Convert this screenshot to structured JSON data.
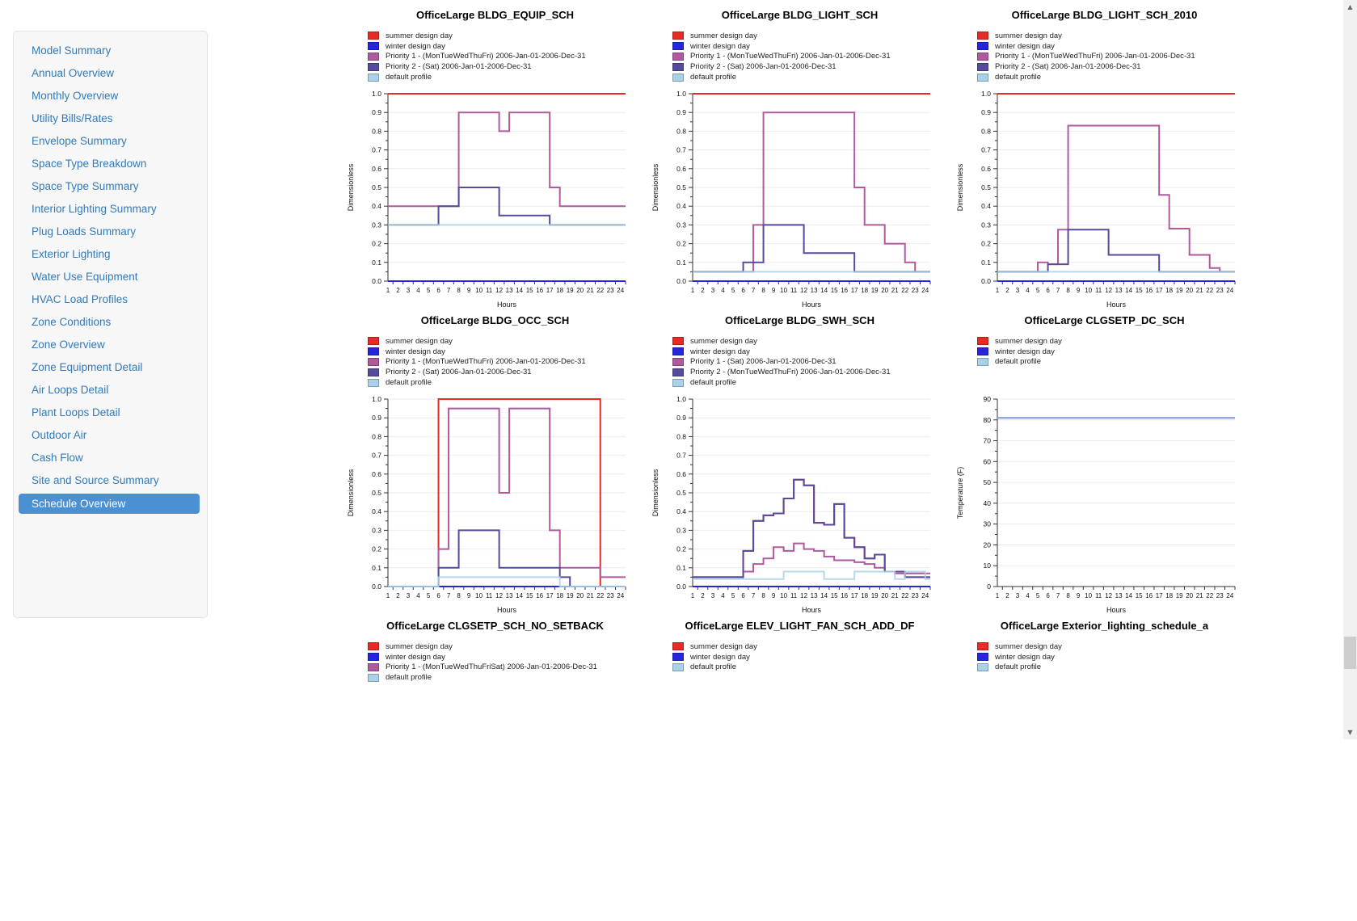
{
  "colors": {
    "summer": "#e62a26",
    "winter": "#2525e0",
    "priority1": "#ae5a9d",
    "priority2": "#534b9b",
    "default_profile": "#a9d2e8",
    "link": "#337ab7",
    "selected_bg": "#4a90d2",
    "selected_text": "#ffffff",
    "grid": "#ebebeb",
    "axis": "#333333"
  },
  "sidebar": {
    "items": [
      {
        "label": "Model Summary",
        "selected": false
      },
      {
        "label": "Annual Overview",
        "selected": false
      },
      {
        "label": "Monthly Overview",
        "selected": false
      },
      {
        "label": "Utility Bills/Rates",
        "selected": false
      },
      {
        "label": "Envelope Summary",
        "selected": false
      },
      {
        "label": "Space Type Breakdown",
        "selected": false
      },
      {
        "label": "Space Type Summary",
        "selected": false
      },
      {
        "label": "Interior Lighting Summary",
        "selected": false
      },
      {
        "label": "Plug Loads Summary",
        "selected": false
      },
      {
        "label": "Exterior Lighting",
        "selected": false
      },
      {
        "label": "Water Use Equipment",
        "selected": false
      },
      {
        "label": "HVAC Load Profiles",
        "selected": false
      },
      {
        "label": "Zone Conditions",
        "selected": false
      },
      {
        "label": "Zone Overview",
        "selected": false
      },
      {
        "label": "Zone Equipment Detail",
        "selected": false
      },
      {
        "label": "Air Loops Detail",
        "selected": false
      },
      {
        "label": "Plant Loops Detail",
        "selected": false
      },
      {
        "label": "Outdoor Air",
        "selected": false
      },
      {
        "label": "Cash Flow",
        "selected": false
      },
      {
        "label": "Site and Source Summary",
        "selected": false
      },
      {
        "label": "Schedule Overview",
        "selected": true
      }
    ]
  },
  "scrollbar": {
    "up_icon": "▲",
    "down_icon": "▼",
    "thumb_top": 788,
    "thumb_height": 40
  },
  "chart_data": [
    {
      "type": "line",
      "title": "OfficeLarge BLDG_EQUIP_SCH",
      "ylabel": "Dimensionless",
      "xlabel": "Hours",
      "ylim": [
        0,
        1.0
      ],
      "ytick_step": 0.1,
      "ydecimals": 1,
      "x_hours": [
        1,
        2,
        3,
        4,
        5,
        6,
        7,
        8,
        9,
        10,
        11,
        12,
        13,
        14,
        15,
        16,
        17,
        18,
        19,
        20,
        21,
        22,
        23,
        24
      ],
      "plot_visible": true,
      "legend": [
        {
          "label": "summer design day",
          "color": "summer"
        },
        {
          "label": "winter design day",
          "color": "winter"
        },
        {
          "label": "Priority 1 - (MonTueWedThuFri) 2006-Jan-01-2006-Dec-31",
          "color": "priority1"
        },
        {
          "label": "Priority 2 - (Sat) 2006-Jan-01-2006-Dec-31",
          "color": "priority2"
        },
        {
          "label": "default profile",
          "color": "default_profile"
        }
      ],
      "series": [
        {
          "label": "summer design day",
          "color": "summer",
          "const": 1.0
        },
        {
          "label": "winter design day",
          "color": "winter",
          "const": 0.0
        },
        {
          "label": "Priority 1 - (MonTueWedThuFri) 2006-Jan-01-2006-Dec-31",
          "color": "priority1",
          "values": [
            0.4,
            0.4,
            0.4,
            0.4,
            0.4,
            0.4,
            0.4,
            0.9,
            0.9,
            0.9,
            0.9,
            0.8,
            0.9,
            0.9,
            0.9,
            0.9,
            0.5,
            0.4,
            0.4,
            0.4,
            0.4,
            0.4,
            0.4,
            0.4
          ]
        },
        {
          "label": "Priority 2 - (Sat) 2006-Jan-01-2006-Dec-31",
          "color": "priority2",
          "values": [
            0.3,
            0.3,
            0.3,
            0.3,
            0.3,
            0.4,
            0.4,
            0.5,
            0.5,
            0.5,
            0.5,
            0.35,
            0.35,
            0.35,
            0.35,
            0.35,
            0.3,
            0.3,
            0.3,
            0.3,
            0.3,
            0.3,
            0.3,
            0.3
          ]
        },
        {
          "label": "default profile",
          "color": "default_profile",
          "const": 0.3
        }
      ]
    },
    {
      "type": "line",
      "title": "OfficeLarge BLDG_LIGHT_SCH",
      "ylabel": "Dimensionless",
      "xlabel": "Hours",
      "ylim": [
        0,
        1.0
      ],
      "ytick_step": 0.1,
      "ydecimals": 1,
      "x_hours": [
        1,
        2,
        3,
        4,
        5,
        6,
        7,
        8,
        9,
        10,
        11,
        12,
        13,
        14,
        15,
        16,
        17,
        18,
        19,
        20,
        21,
        22,
        23,
        24
      ],
      "plot_visible": true,
      "legend": [
        {
          "label": "summer design day",
          "color": "summer"
        },
        {
          "label": "winter design day",
          "color": "winter"
        },
        {
          "label": "Priority 1 - (MonTueWedThuFri) 2006-Jan-01-2006-Dec-31",
          "color": "priority1"
        },
        {
          "label": "Priority 2 - (Sat) 2006-Jan-01-2006-Dec-31",
          "color": "priority2"
        },
        {
          "label": "default profile",
          "color": "default_profile"
        }
      ],
      "series": [
        {
          "label": "summer design day",
          "color": "summer",
          "const": 1.0
        },
        {
          "label": "winter design day",
          "color": "winter",
          "const": 0.0
        },
        {
          "label": "Priority 1 - (MonTueWedThuFri) 2006-Jan-01-2006-Dec-31",
          "color": "priority1",
          "values": [
            0.05,
            0.05,
            0.05,
            0.05,
            0.05,
            0.05,
            0.3,
            0.9,
            0.9,
            0.9,
            0.9,
            0.9,
            0.9,
            0.9,
            0.9,
            0.9,
            0.5,
            0.3,
            0.3,
            0.2,
            0.2,
            0.1,
            0.05,
            0.05
          ]
        },
        {
          "label": "Priority 2 - (Sat) 2006-Jan-01-2006-Dec-31",
          "color": "priority2",
          "values": [
            0.05,
            0.05,
            0.05,
            0.05,
            0.05,
            0.1,
            0.1,
            0.3,
            0.3,
            0.3,
            0.3,
            0.15,
            0.15,
            0.15,
            0.15,
            0.15,
            0.05,
            0.05,
            0.05,
            0.05,
            0.05,
            0.05,
            0.05,
            0.05
          ]
        },
        {
          "label": "default profile",
          "color": "default_profile",
          "const": 0.05
        }
      ]
    },
    {
      "type": "line",
      "title": "OfficeLarge BLDG_LIGHT_SCH_2010",
      "ylabel": "Dimensionless",
      "xlabel": "Hours",
      "ylim": [
        0,
        1.0
      ],
      "ytick_step": 0.1,
      "ydecimals": 1,
      "x_hours": [
        1,
        2,
        3,
        4,
        5,
        6,
        7,
        8,
        9,
        10,
        11,
        12,
        13,
        14,
        15,
        16,
        17,
        18,
        19,
        20,
        21,
        22,
        23,
        24
      ],
      "plot_visible": true,
      "legend": [
        {
          "label": "summer design day",
          "color": "summer"
        },
        {
          "label": "winter design day",
          "color": "winter"
        },
        {
          "label": "Priority 1 - (MonTueWedThuFri) 2006-Jan-01-2006-Dec-31",
          "color": "priority1"
        },
        {
          "label": "Priority 2 - (Sat) 2006-Jan-01-2006-Dec-31",
          "color": "priority2"
        },
        {
          "label": "default profile",
          "color": "default_profile"
        }
      ],
      "series": [
        {
          "label": "summer design day",
          "color": "summer",
          "const": 1.0
        },
        {
          "label": "winter design day",
          "color": "winter",
          "const": 0.0
        },
        {
          "label": "Priority 1 - (MonTueWedThuFri) 2006-Jan-01-2006-Dec-31",
          "color": "priority1",
          "values": [
            0.05,
            0.05,
            0.05,
            0.05,
            0.1,
            0.09,
            0.275,
            0.83,
            0.83,
            0.83,
            0.83,
            0.83,
            0.83,
            0.83,
            0.83,
            0.83,
            0.46,
            0.28,
            0.28,
            0.14,
            0.14,
            0.07,
            0.05,
            0.05
          ]
        },
        {
          "label": "Priority 2 - (Sat) 2006-Jan-01-2006-Dec-31",
          "color": "priority2",
          "values": [
            0.05,
            0.05,
            0.05,
            0.05,
            0.05,
            0.09,
            0.09,
            0.275,
            0.275,
            0.275,
            0.275,
            0.14,
            0.14,
            0.14,
            0.14,
            0.14,
            0.05,
            0.05,
            0.05,
            0.05,
            0.05,
            0.05,
            0.05,
            0.05
          ]
        },
        {
          "label": "default profile",
          "color": "default_profile",
          "const": 0.05
        }
      ]
    },
    {
      "type": "line",
      "title": "OfficeLarge BLDG_OCC_SCH",
      "ylabel": "Dimensionless",
      "xlabel": "Hours",
      "ylim": [
        0,
        1.0
      ],
      "ytick_step": 0.1,
      "ydecimals": 1,
      "x_hours": [
        1,
        2,
        3,
        4,
        5,
        6,
        7,
        8,
        9,
        10,
        11,
        12,
        13,
        14,
        15,
        16,
        17,
        18,
        19,
        20,
        21,
        22,
        23,
        24
      ],
      "plot_visible": true,
      "legend": [
        {
          "label": "summer design day",
          "color": "summer"
        },
        {
          "label": "winter design day",
          "color": "winter"
        },
        {
          "label": "Priority 1 - (MonTueWedThuFri) 2006-Jan-01-2006-Dec-31",
          "color": "priority1"
        },
        {
          "label": "Priority 2 - (Sat) 2006-Jan-01-2006-Dec-31",
          "color": "priority2"
        },
        {
          "label": "default profile",
          "color": "default_profile"
        }
      ],
      "series": [
        {
          "label": "summer design day",
          "color": "summer",
          "values": [
            0,
            0,
            0,
            0,
            0,
            1,
            1,
            1,
            1,
            1,
            1,
            1,
            1,
            1,
            1,
            1,
            1,
            1,
            1,
            1,
            1,
            0,
            0,
            0
          ]
        },
        {
          "label": "winter design day",
          "color": "winter",
          "const": 0.0
        },
        {
          "label": "Priority 1 - (MonTueWedThuFri) 2006-Jan-01-2006-Dec-31",
          "color": "priority1",
          "values": [
            0,
            0,
            0,
            0,
            0,
            0.2,
            0.95,
            0.95,
            0.95,
            0.95,
            0.95,
            0.5,
            0.95,
            0.95,
            0.95,
            0.95,
            0.3,
            0.1,
            0.1,
            0.1,
            0.1,
            0.05,
            0.05,
            0.05
          ]
        },
        {
          "label": "Priority 2 - (Sat) 2006-Jan-01-2006-Dec-31",
          "color": "priority2",
          "values": [
            0,
            0,
            0,
            0,
            0,
            0.1,
            0.1,
            0.3,
            0.3,
            0.3,
            0.3,
            0.1,
            0.1,
            0.1,
            0.1,
            0.1,
            0.1,
            0.05,
            0,
            0,
            0,
            0,
            0,
            0
          ]
        },
        {
          "label": "default profile",
          "color": "default_profile",
          "values": [
            0,
            0,
            0,
            0,
            0,
            0.05,
            0.05,
            0.05,
            0.05,
            0.05,
            0.05,
            0.05,
            0.05,
            0.05,
            0.05,
            0.05,
            0.05,
            0,
            0,
            0,
            0,
            0,
            0,
            0
          ]
        }
      ]
    },
    {
      "type": "line",
      "title": "OfficeLarge BLDG_SWH_SCH",
      "ylabel": "Dimensionless",
      "xlabel": "Hours",
      "ylim": [
        0,
        1.0
      ],
      "ytick_step": 0.1,
      "ydecimals": 1,
      "x_hours": [
        1,
        2,
        3,
        4,
        5,
        6,
        7,
        8,
        9,
        10,
        11,
        12,
        13,
        14,
        15,
        16,
        17,
        18,
        19,
        20,
        21,
        22,
        23,
        24
      ],
      "plot_visible": true,
      "legend": [
        {
          "label": "summer design day",
          "color": "summer"
        },
        {
          "label": "winter design day",
          "color": "winter"
        },
        {
          "label": "Priority 1 - (Sat) 2006-Jan-01-2006-Dec-31",
          "color": "priority1"
        },
        {
          "label": "Priority 2 - (MonTueWedThuFri) 2006-Jan-01-2006-Dec-31",
          "color": "priority2"
        },
        {
          "label": "default profile",
          "color": "default_profile"
        }
      ],
      "series": [
        {
          "label": "summer design day",
          "color": "summer",
          "values": [
            0.05,
            0.05,
            0.05,
            0.05,
            0.05,
            0.19,
            0.35,
            0.38,
            0.39,
            0.47,
            0.57,
            0.54,
            0.34,
            0.33,
            0.44,
            0.26,
            0.21,
            0.15,
            0.17,
            0.08,
            0.08,
            0.05,
            0.05,
            0.05
          ]
        },
        {
          "label": "winter design day",
          "color": "winter",
          "const": 0.0
        },
        {
          "label": "Priority 1 - (Sat) 2006-Jan-01-2006-Dec-31",
          "color": "priority1",
          "values": [
            0.05,
            0.05,
            0.05,
            0.05,
            0.05,
            0.08,
            0.12,
            0.15,
            0.21,
            0.19,
            0.23,
            0.2,
            0.19,
            0.16,
            0.14,
            0.14,
            0.13,
            0.12,
            0.1,
            0.08,
            0.07,
            0.07,
            0.07,
            0.07
          ]
        },
        {
          "label": "Priority 2 - (MonTueWedThuFri) 2006-Jan-01-2006-Dec-31",
          "color": "priority2",
          "values": [
            0.05,
            0.05,
            0.05,
            0.05,
            0.05,
            0.19,
            0.35,
            0.38,
            0.39,
            0.47,
            0.57,
            0.54,
            0.34,
            0.33,
            0.44,
            0.26,
            0.21,
            0.15,
            0.17,
            0.08,
            0.08,
            0.05,
            0.05,
            0.05
          ]
        },
        {
          "label": "default profile",
          "color": "default_profile",
          "values": [
            0.04,
            0.04,
            0.04,
            0.04,
            0.04,
            0.04,
            0.04,
            0.04,
            0.04,
            0.08,
            0.08,
            0.08,
            0.08,
            0.04,
            0.04,
            0.04,
            0.08,
            0.08,
            0.08,
            0.08,
            0.04,
            0.08,
            0.08,
            0.04
          ]
        }
      ]
    },
    {
      "type": "line",
      "title": "OfficeLarge CLGSETP_DC_SCH",
      "ylabel": "Temperature (F)",
      "xlabel": "Hours",
      "ylim": [
        0,
        90
      ],
      "ytick_step": 10,
      "ydecimals": 0,
      "x_hours": [
        1,
        2,
        3,
        4,
        5,
        6,
        7,
        8,
        9,
        10,
        11,
        12,
        13,
        14,
        15,
        16,
        17,
        18,
        19,
        20,
        21,
        22,
        23,
        24
      ],
      "plot_visible": true,
      "legend": [
        {
          "label": "summer design day",
          "color": "summer"
        },
        {
          "label": "winter design day",
          "color": "winter"
        },
        {
          "label": "default profile",
          "color": "default_profile"
        }
      ],
      "series": [
        {
          "label": "summer design day",
          "color": "summer",
          "const": 81
        },
        {
          "label": "winter design day",
          "color": "winter",
          "const": 81
        },
        {
          "label": "default profile",
          "color": "default_profile",
          "const": 81
        }
      ]
    },
    {
      "type": "line",
      "title": "OfficeLarge CLGSETP_SCH_NO_SETBACK",
      "plot_visible": false,
      "legend": [
        {
          "label": "summer design day",
          "color": "summer"
        },
        {
          "label": "winter design day",
          "color": "winter"
        },
        {
          "label": "Priority 1 - (MonTueWedThuFriSat) 2006-Jan-01-2006-Dec-31",
          "color": "priority1"
        },
        {
          "label": "default profile",
          "color": "default_profile"
        }
      ],
      "series": []
    },
    {
      "type": "line",
      "title": "OfficeLarge ELEV_LIGHT_FAN_SCH_ADD_DF",
      "plot_visible": false,
      "legend": [
        {
          "label": "summer design day",
          "color": "summer"
        },
        {
          "label": "winter design day",
          "color": "winter"
        },
        {
          "label": "default profile",
          "color": "default_profile"
        }
      ],
      "series": []
    },
    {
      "type": "line",
      "title": "OfficeLarge Exterior_lighting_schedule_a",
      "plot_visible": false,
      "legend": [
        {
          "label": "summer design day",
          "color": "summer"
        },
        {
          "label": "winter design day",
          "color": "winter"
        },
        {
          "label": "default profile",
          "color": "default_profile"
        }
      ],
      "series": []
    }
  ]
}
